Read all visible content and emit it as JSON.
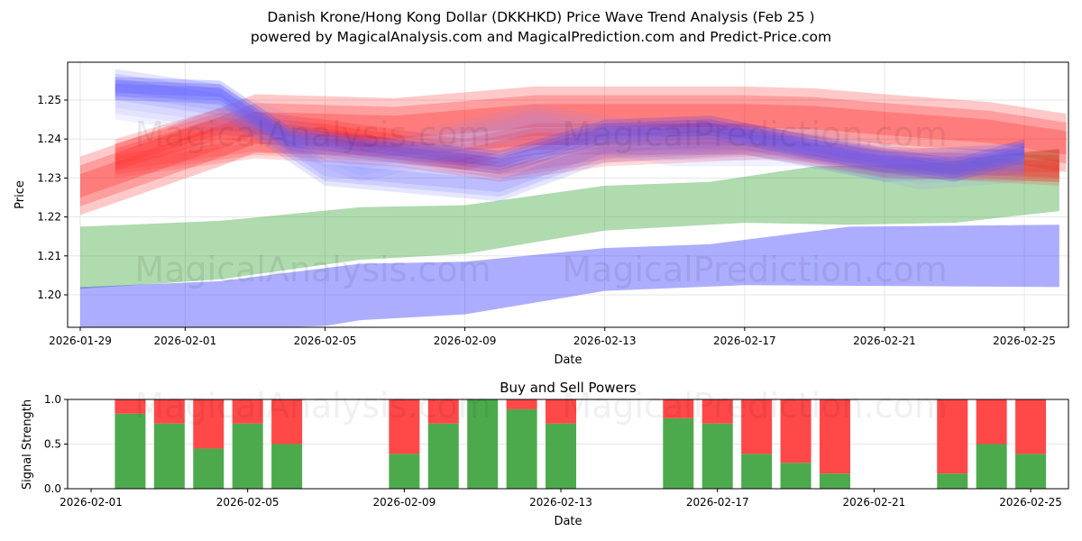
{
  "title_line1": "Danish Krone/Hong Kong Dollar (DKKHKD) Price Wave Trend Analysis (Feb 25 )",
  "title_line2": "powered by MagicalAnalysis.com and MagicalPrediction.com and Predict-Price.com",
  "watermarks": [
    "MagicalAnalysis.com",
    "MagicalPrediction.com"
  ],
  "chart_data": [
    {
      "type": "area",
      "title": "",
      "xlabel": "Date",
      "ylabel": "Price",
      "ylim": [
        1.1917,
        1.2597
      ],
      "xlim_days_from_2026_01_29": [
        -0.4,
        28.2
      ],
      "x_tick_labels": [
        "2026-01-29",
        "2026-02-01",
        "2026-02-05",
        "2026-02-09",
        "2026-02-13",
        "2026-02-17",
        "2026-02-21",
        "2026-02-25"
      ],
      "x_tick_days": [
        0,
        3,
        7,
        11,
        15,
        19,
        23,
        27
      ],
      "y_ticks": [
        1.2,
        1.21,
        1.22,
        1.23,
        1.24,
        1.25
      ],
      "y_tick_labels": [
        "1.20",
        "1.21",
        "1.22",
        "1.23",
        "1.24",
        "1.25"
      ],
      "grid": true,
      "bands": [
        {
          "name": "green-band",
          "color": "#2ca02c",
          "opacity": 0.38,
          "upper": [
            [
              0,
              1.2175
            ],
            [
              4,
              1.219
            ],
            [
              8,
              1.2225
            ],
            [
              11,
              1.223
            ],
            [
              15,
              1.228
            ],
            [
              18,
              1.229
            ],
            [
              21,
              1.233
            ],
            [
              24,
              1.2335
            ],
            [
              28,
              1.2375
            ]
          ],
          "lower": [
            [
              0,
              1.2015
            ],
            [
              4,
              1.204
            ],
            [
              8,
              1.209
            ],
            [
              11,
              1.2105
            ],
            [
              15,
              1.2165
            ],
            [
              19,
              1.2185
            ],
            [
              22,
              1.218
            ],
            [
              25,
              1.2185
            ],
            [
              28,
              1.2215
            ]
          ]
        },
        {
          "name": "blue-lower-band",
          "color": "#3333ff",
          "opacity": 0.4,
          "upper": [
            [
              0,
              1.202
            ],
            [
              4,
              1.2035
            ],
            [
              8,
              1.208
            ],
            [
              11,
              1.2085
            ],
            [
              15,
              1.212
            ],
            [
              18,
              1.213
            ],
            [
              22,
              1.2175
            ],
            [
              28,
              1.218
            ]
          ],
          "lower": [
            [
              0,
              1.19
            ],
            [
              7,
              1.192
            ],
            [
              8,
              1.1935
            ],
            [
              11,
              1.195
            ],
            [
              15,
              1.201
            ],
            [
              19,
              1.2025
            ],
            [
              28,
              1.202
            ]
          ]
        }
      ],
      "waves": [
        {
          "name": "red-wave-1",
          "color": "#ff0000",
          "opacity": 0.3,
          "half_width": 0.0075,
          "points": [
            [
              0,
              1.228
            ],
            [
              4,
              1.2405
            ],
            [
              5,
              1.244
            ],
            [
              9,
              1.243
            ],
            [
              11,
              1.2445
            ],
            [
              13,
              1.246
            ],
            [
              19,
              1.246
            ],
            [
              21,
              1.2455
            ],
            [
              23,
              1.244
            ],
            [
              26,
              1.242
            ],
            [
              28.2,
              1.239
            ]
          ]
        },
        {
          "name": "red-wave-2",
          "color": "#ff0000",
          "opacity": 0.25,
          "half_width": 0.004,
          "points": [
            [
              1,
              1.236
            ],
            [
              4,
              1.244
            ],
            [
              7,
              1.241
            ],
            [
              11,
              1.236
            ],
            [
              13,
              1.24
            ],
            [
              19,
              1.24
            ],
            [
              23,
              1.234
            ],
            [
              28,
              1.233
            ]
          ]
        },
        {
          "name": "red-wave-3",
          "color": "#ff3030",
          "opacity": 0.25,
          "half_width": 0.003,
          "points": [
            [
              1,
              1.233
            ],
            [
              5,
              1.238
            ],
            [
              9,
              1.236
            ],
            [
              12,
              1.232
            ],
            [
              15,
              1.236
            ],
            [
              20,
              1.238
            ],
            [
              24,
              1.233
            ],
            [
              28,
              1.231
            ]
          ]
        },
        {
          "name": "blue-wave-1",
          "color": "#3333ff",
          "opacity": 0.3,
          "half_width": 0.003,
          "points": [
            [
              1,
              1.253
            ],
            [
              4,
              1.252
            ],
            [
              6,
              1.24
            ],
            [
              9,
              1.237
            ],
            [
              12,
              1.234
            ],
            [
              15,
              1.242
            ],
            [
              18,
              1.243
            ],
            [
              22,
              1.236
            ],
            [
              25,
              1.232
            ],
            [
              27,
              1.237
            ]
          ]
        },
        {
          "name": "blue-wave-2",
          "color": "#5555ff",
          "opacity": 0.22,
          "half_width": 0.004,
          "points": [
            [
              1,
              1.254
            ],
            [
              4,
              1.25
            ],
            [
              7,
              1.232
            ],
            [
              12,
              1.228
            ],
            [
              15,
              1.238
            ],
            [
              19,
              1.24
            ],
            [
              23,
              1.233
            ],
            [
              27,
              1.235
            ]
          ]
        },
        {
          "name": "blue-wave-3",
          "color": "#8888ff",
          "opacity": 0.18,
          "half_width": 0.005,
          "points": [
            [
              1,
              1.25
            ],
            [
              5,
              1.245
            ],
            [
              8,
              1.234
            ],
            [
              13,
              1.244
            ],
            [
              17,
              1.238
            ],
            [
              21,
              1.238
            ],
            [
              24,
              1.232
            ],
            [
              27,
              1.234
            ]
          ]
        }
      ]
    },
    {
      "type": "bar",
      "stacked": true,
      "title": "Buy and Sell Powers",
      "xlabel": "Date",
      "ylabel": "Signal Strength",
      "ylim": [
        0,
        1
      ],
      "y_ticks": [
        0,
        0.5,
        1
      ],
      "y_tick_labels": [
        "0.0",
        "0.5",
        "1.0"
      ],
      "x_tick_labels": [
        "2026-02-01",
        "2026-02-05",
        "2026-02-09",
        "2026-02-13",
        "2026-02-17",
        "2026-02-21",
        "2026-02-25"
      ],
      "x_tick_days": [
        0,
        4,
        8,
        12,
        16,
        20,
        24
      ],
      "categories": [
        "2026-02-02",
        "2026-02-03",
        "2026-02-04",
        "2026-02-05",
        "2026-02-06",
        "2026-02-09",
        "2026-02-10",
        "2026-02-11",
        "2026-02-12",
        "2026-02-13",
        "2026-02-16",
        "2026-02-17",
        "2026-02-18",
        "2026-02-19",
        "2026-02-20",
        "2026-02-23",
        "2026-02-24",
        "2026-02-25"
      ],
      "category_days": [
        1,
        2,
        3,
        4,
        5,
        8,
        9,
        10,
        11,
        12,
        15,
        16,
        17,
        18,
        19,
        22,
        23,
        24
      ],
      "series": [
        {
          "name": "Buy",
          "color": "#4caa4c",
          "values": [
            0.84,
            0.73,
            0.45,
            0.73,
            0.5,
            0.39,
            0.73,
            1.0,
            0.89,
            0.73,
            0.79,
            0.73,
            0.39,
            0.29,
            0.17,
            0.17,
            0.5,
            0.39
          ]
        },
        {
          "name": "Sell",
          "color": "#ff4848",
          "values": [
            0.16,
            0.27,
            0.55,
            0.27,
            0.5,
            0.61,
            0.27,
            0.0,
            0.11,
            0.27,
            0.21,
            0.27,
            0.61,
            0.71,
            0.83,
            0.83,
            0.5,
            0.61
          ]
        }
      ]
    }
  ]
}
